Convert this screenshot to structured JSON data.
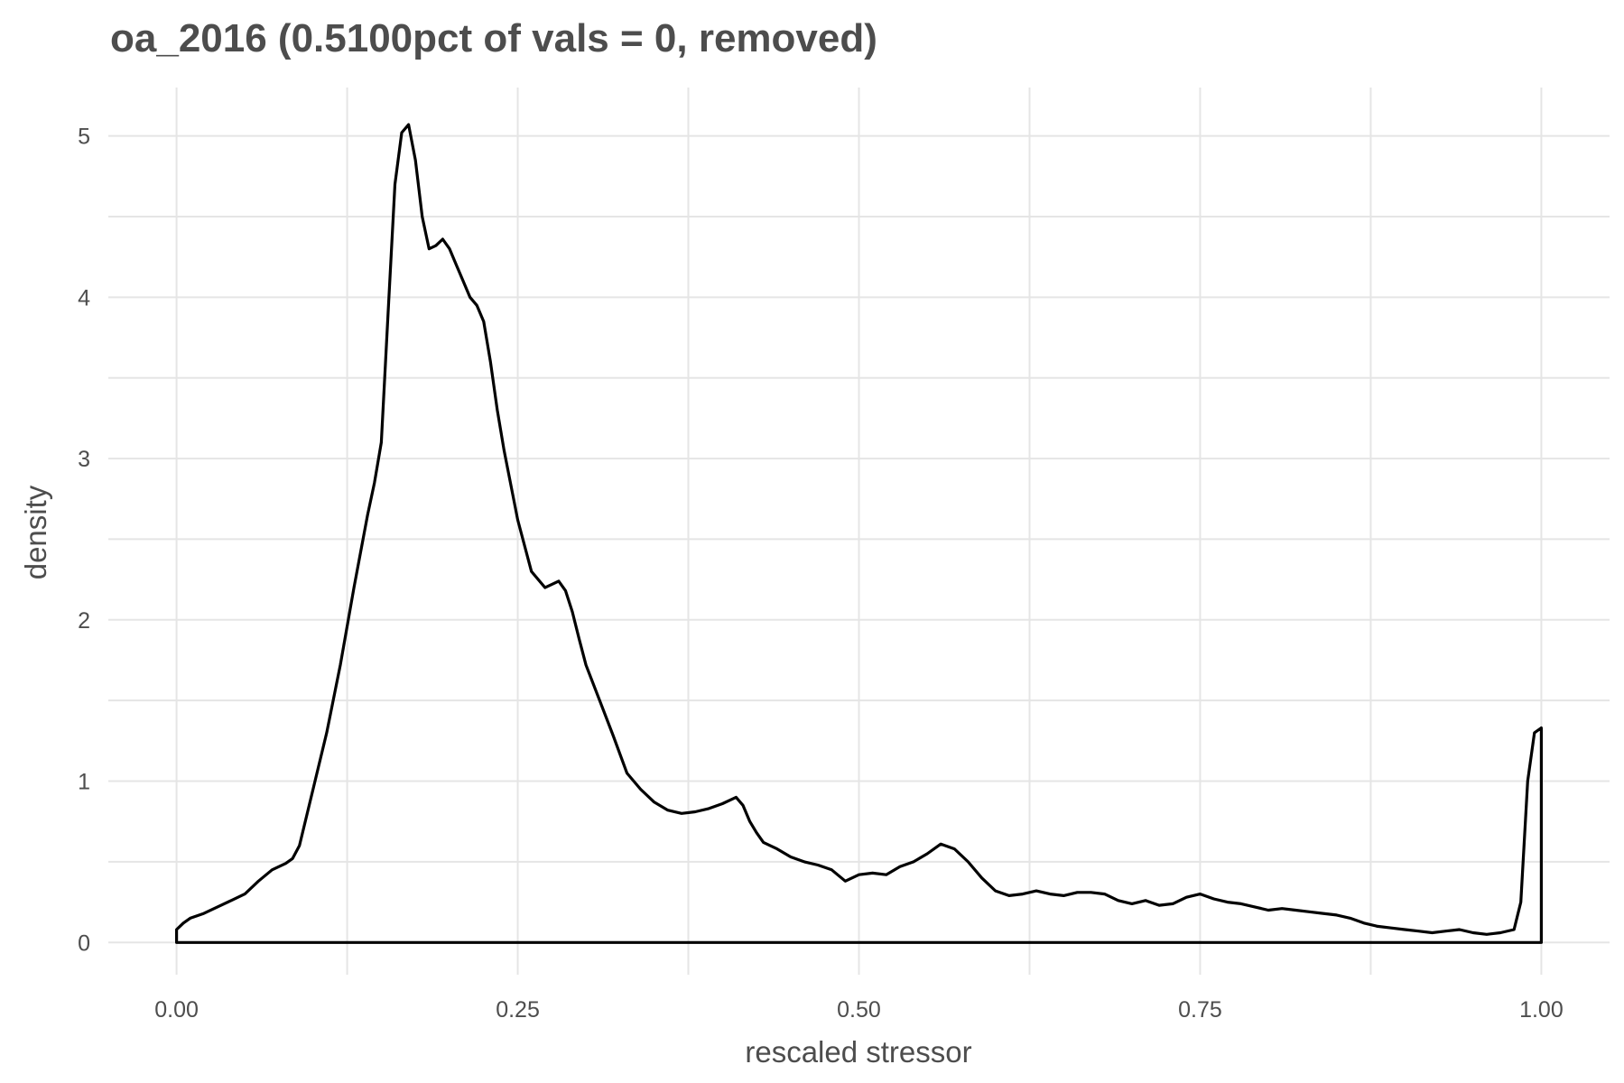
{
  "chart_data": {
    "type": "line",
    "title": "oa_2016 (0.5100pct of vals = 0, removed)",
    "xlabel": "rescaled stressor",
    "ylabel": "density",
    "xlim": [
      -0.05,
      1.05
    ],
    "ylim": [
      -0.2,
      5.3
    ],
    "grid": true,
    "legend": "none",
    "x_ticks": [
      0.0,
      0.25,
      0.5,
      0.75,
      1.0
    ],
    "x_tick_labels": [
      "0.00",
      "0.25",
      "0.50",
      "0.75",
      "1.00"
    ],
    "y_ticks": [
      0,
      1,
      2,
      3,
      4,
      5
    ],
    "y_tick_labels": [
      "0",
      "1",
      "2",
      "3",
      "4",
      "5"
    ],
    "series": [
      {
        "line_color": "#000000",
        "x": [
          0.0,
          0.005,
          0.01,
          0.02,
          0.03,
          0.04,
          0.05,
          0.06,
          0.07,
          0.08,
          0.085,
          0.09,
          0.1,
          0.11,
          0.12,
          0.13,
          0.14,
          0.145,
          0.15,
          0.155,
          0.16,
          0.165,
          0.17,
          0.175,
          0.18,
          0.185,
          0.19,
          0.195,
          0.2,
          0.205,
          0.21,
          0.215,
          0.22,
          0.225,
          0.23,
          0.235,
          0.24,
          0.25,
          0.26,
          0.27,
          0.28,
          0.285,
          0.29,
          0.295,
          0.3,
          0.31,
          0.32,
          0.33,
          0.34,
          0.35,
          0.36,
          0.37,
          0.38,
          0.39,
          0.4,
          0.41,
          0.415,
          0.42,
          0.425,
          0.43,
          0.44,
          0.45,
          0.46,
          0.47,
          0.48,
          0.49,
          0.5,
          0.51,
          0.52,
          0.53,
          0.54,
          0.55,
          0.56,
          0.57,
          0.58,
          0.59,
          0.6,
          0.61,
          0.62,
          0.63,
          0.64,
          0.65,
          0.66,
          0.67,
          0.68,
          0.69,
          0.7,
          0.71,
          0.72,
          0.73,
          0.74,
          0.75,
          0.76,
          0.77,
          0.78,
          0.79,
          0.8,
          0.81,
          0.82,
          0.83,
          0.84,
          0.85,
          0.86,
          0.87,
          0.88,
          0.89,
          0.9,
          0.91,
          0.92,
          0.93,
          0.94,
          0.95,
          0.96,
          0.97,
          0.98,
          0.985,
          0.99,
          0.995,
          1.0,
          1.0
        ],
        "y": [
          0.08,
          0.12,
          0.15,
          0.18,
          0.22,
          0.26,
          0.3,
          0.38,
          0.45,
          0.49,
          0.52,
          0.6,
          0.95,
          1.3,
          1.72,
          2.2,
          2.65,
          2.85,
          3.1,
          3.9,
          4.7,
          5.02,
          5.07,
          4.85,
          4.5,
          4.3,
          4.32,
          4.36,
          4.3,
          4.2,
          4.1,
          4.0,
          3.95,
          3.85,
          3.6,
          3.3,
          3.05,
          2.62,
          2.3,
          2.2,
          2.24,
          2.18,
          2.05,
          1.88,
          1.72,
          1.5,
          1.28,
          1.05,
          0.95,
          0.87,
          0.82,
          0.8,
          0.81,
          0.83,
          0.86,
          0.9,
          0.85,
          0.75,
          0.68,
          0.62,
          0.58,
          0.53,
          0.5,
          0.48,
          0.45,
          0.38,
          0.42,
          0.43,
          0.42,
          0.47,
          0.5,
          0.55,
          0.61,
          0.58,
          0.5,
          0.4,
          0.32,
          0.29,
          0.3,
          0.32,
          0.3,
          0.29,
          0.31,
          0.31,
          0.3,
          0.26,
          0.24,
          0.26,
          0.23,
          0.24,
          0.28,
          0.3,
          0.27,
          0.25,
          0.24,
          0.22,
          0.2,
          0.21,
          0.2,
          0.19,
          0.18,
          0.17,
          0.15,
          0.12,
          0.1,
          0.09,
          0.08,
          0.07,
          0.06,
          0.07,
          0.08,
          0.06,
          0.05,
          0.06,
          0.08,
          0.25,
          1.0,
          1.3,
          1.33,
          0.0
        ]
      }
    ]
  }
}
